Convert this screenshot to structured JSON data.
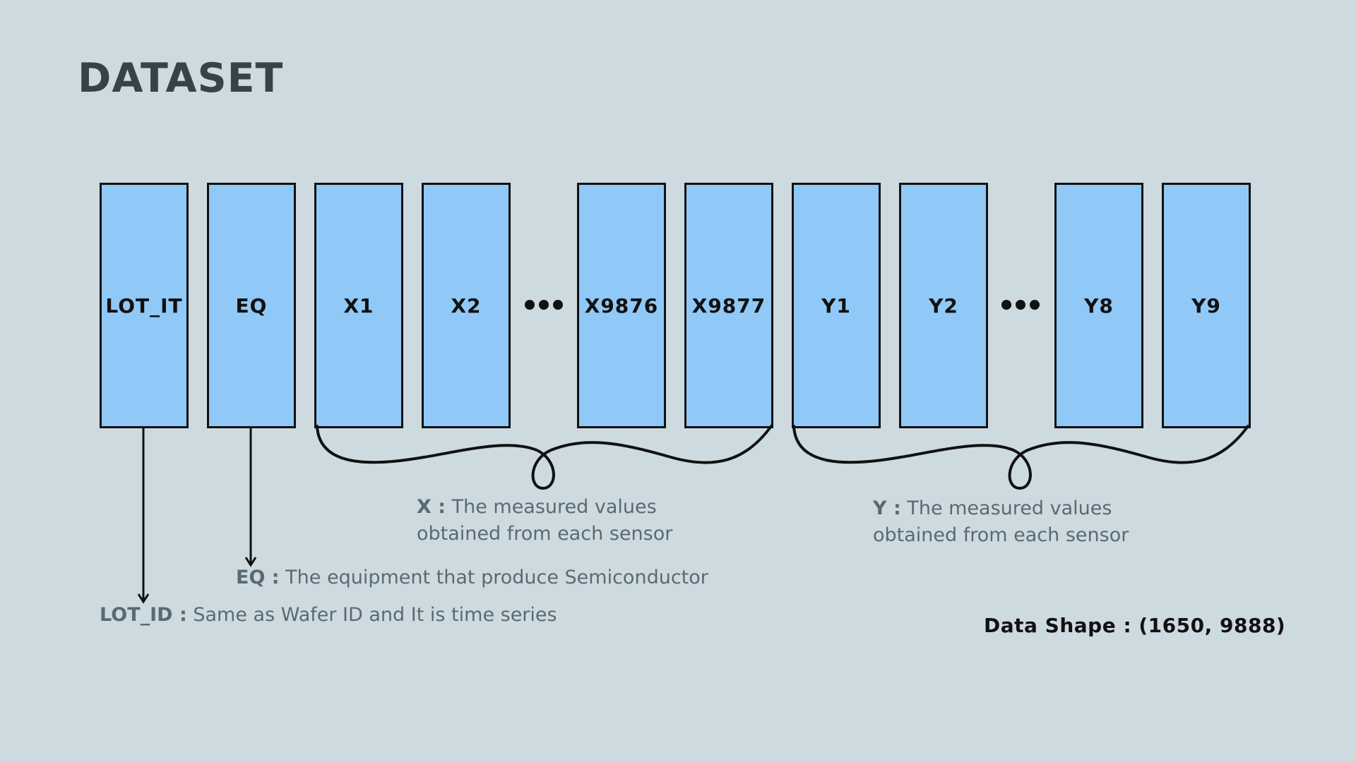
{
  "title": "DATASET",
  "columns": [
    {
      "label": "LOT_IT"
    },
    {
      "label": "EQ"
    },
    {
      "label": "X1"
    },
    {
      "label": "X2"
    },
    {
      "label": "X9876"
    },
    {
      "label": "X9877"
    },
    {
      "label": "Y1"
    },
    {
      "label": "Y2"
    },
    {
      "label": "Y8"
    },
    {
      "label": "Y9"
    }
  ],
  "descriptions": {
    "x": {
      "key": "X :",
      "text_line1": " The measured values",
      "text_line2": "obtained from each sensor"
    },
    "y": {
      "key": "Y :",
      "text_line1": " The measured values",
      "text_line2": "obtained from each sensor"
    },
    "eq": {
      "key": "EQ :",
      "text": " The equipment that produce Semiconductor"
    },
    "lot": {
      "key": "LOT_ID :",
      "text": " Same as Wafer ID and It is time series"
    }
  },
  "data_shape": "Data Shape : (1650, 9888)",
  "colors": {
    "background": "#cddbe0",
    "column_fill": "#90c9f7",
    "title": "#364349",
    "description": "#5a6a72"
  }
}
